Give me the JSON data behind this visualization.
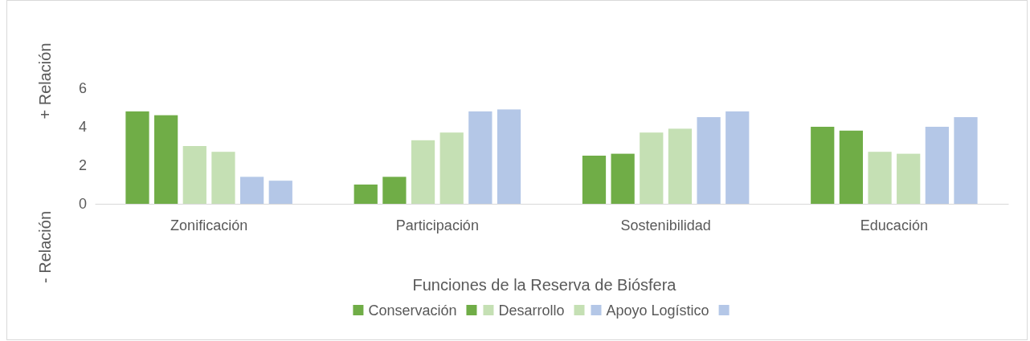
{
  "chart_data": {
    "type": "bar",
    "xlabel": "Funciones de la Reserva de Biósfera",
    "ylabel": "+ Relación",
    "annotations": [
      "- Relación"
    ],
    "categories": [
      "Zonificación",
      "Participación",
      "Sostenibilidad",
      "Educación"
    ],
    "series": [
      {
        "name": "Conservación",
        "color": "#70ad47",
        "values": [
          4.8,
          1.0,
          2.5,
          4.0
        ]
      },
      {
        "color": "#70ad47",
        "values": [
          4.6,
          1.4,
          2.6,
          3.8
        ]
      },
      {
        "name": "Desarrollo",
        "color": "#c5e0b4",
        "values": [
          3.0,
          3.3,
          3.7,
          2.7
        ]
      },
      {
        "color": "#c5e0b4",
        "values": [
          2.7,
          3.7,
          3.9,
          2.6
        ]
      },
      {
        "name": "Apoyo Logístico",
        "color": "#b4c7e7",
        "values": [
          1.4,
          4.8,
          4.5,
          4.0
        ]
      },
      {
        "color": "#b4c7e7",
        "values": [
          1.2,
          4.9,
          4.8,
          4.5
        ]
      }
    ],
    "ylim": [
      0,
      6
    ],
    "yticks": [
      0,
      2,
      4,
      6
    ],
    "grid": false,
    "legend": "bottom"
  }
}
